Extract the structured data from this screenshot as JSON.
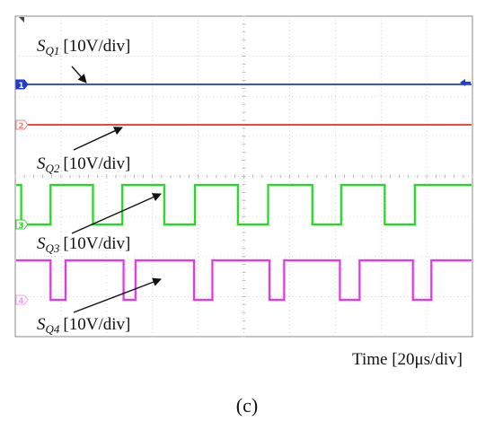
{
  "chart_data": {
    "type": "line",
    "title": "",
    "xlabel": "Time [20μs/div]",
    "ylabel": "",
    "x_divisions": 10,
    "y_divisions": 8,
    "grid": true,
    "caption": "(c)",
    "series": [
      {
        "channel": "1",
        "symbol": "S",
        "subscript": "Q1",
        "scale": "[10V/div]",
        "color": "#1f3bd6",
        "marker_color": "#1f3bd6",
        "waveform": "dc-high",
        "high": true,
        "transitions": []
      },
      {
        "channel": "2",
        "symbol": "S",
        "subscript": "Q2",
        "scale": "[10V/div]",
        "color": "#e8302a",
        "marker_color": "#f08080",
        "waveform": "dc-low",
        "high": false,
        "transitions": []
      },
      {
        "channel": "3",
        "symbol": "S",
        "subscript": "Q3",
        "scale": "[10V/div]",
        "color": "#29d629",
        "marker_color": "#29d629",
        "waveform": "pulse",
        "start_high": true,
        "transitions": [
          0.13,
          0.77,
          1.7,
          2.34,
          3.26,
          3.93,
          4.87,
          5.53,
          6.5,
          7.13,
          8.08,
          8.74
        ]
      },
      {
        "channel": "4",
        "symbol": "S",
        "subscript": "Q4",
        "scale": "[10V/div]",
        "color": "#e23ae2",
        "marker_color": "#f0a0f0",
        "waveform": "pulse",
        "start_high": true,
        "transitions": [
          0.77,
          1.1,
          2.37,
          2.63,
          3.91,
          4.31,
          5.56,
          5.88,
          7.1,
          7.53,
          8.7,
          9.1
        ]
      }
    ]
  }
}
